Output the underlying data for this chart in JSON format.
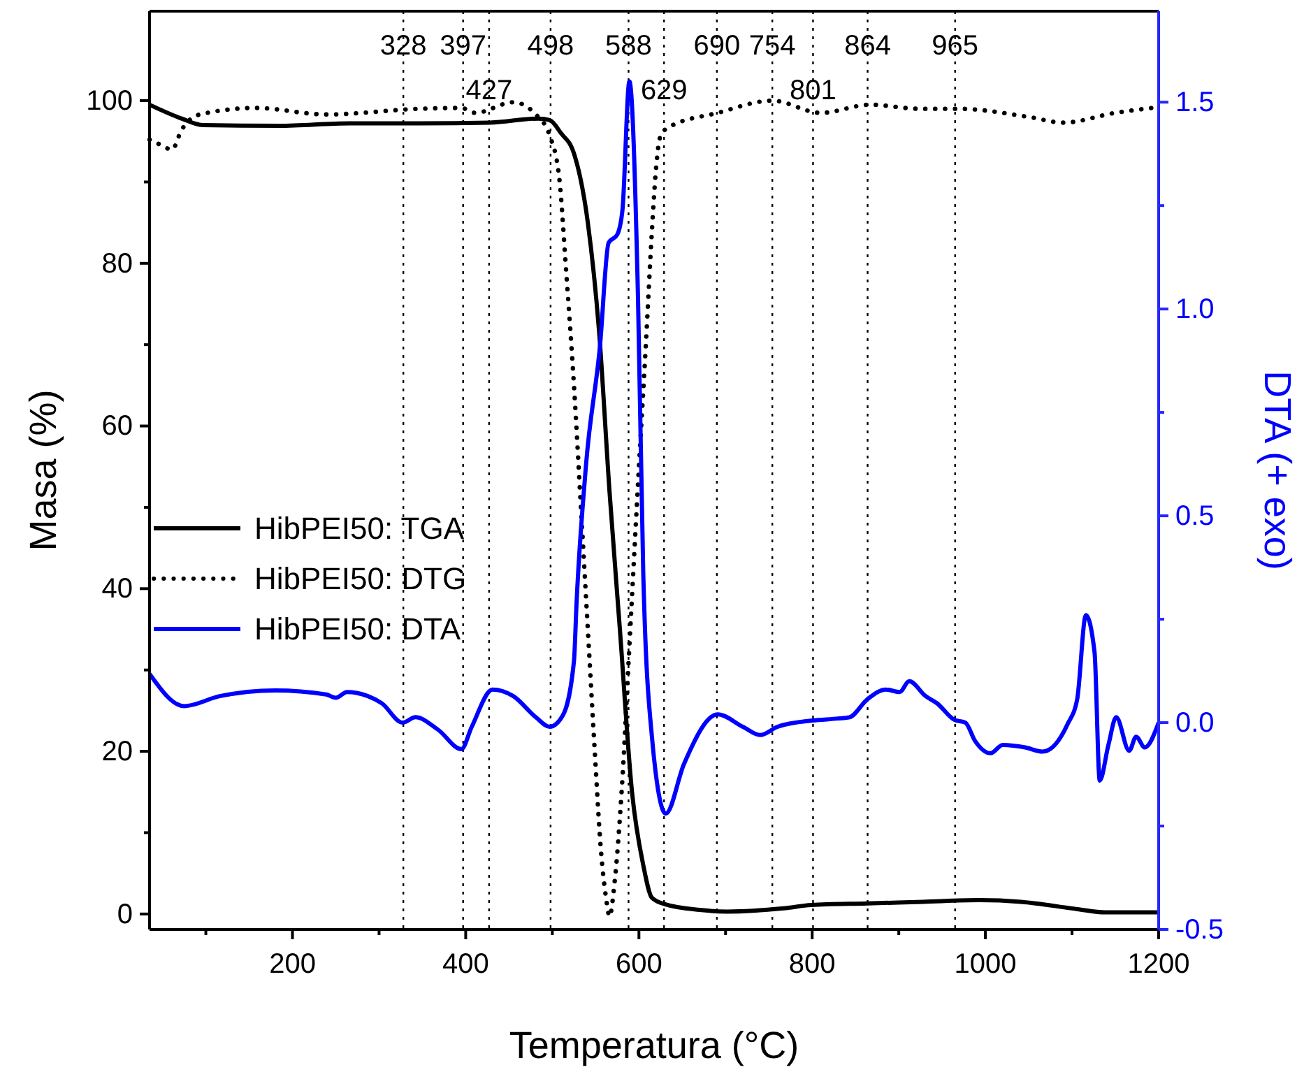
{
  "chart_data": {
    "type": "line",
    "xlabel": "Temperatura (°C)",
    "ylabel": "Masa (%)",
    "y2label": "DTA (+ exo)",
    "xlim": [
      35,
      1200
    ],
    "xticks": [
      {
        "value": 100,
        "label": null
      },
      200,
      {
        "value": 300,
        "label": null
      },
      400,
      {
        "value": 500,
        "label": null
      },
      600,
      {
        "value": 700,
        "label": null
      },
      800,
      {
        "value": 900,
        "label": null
      },
      1000,
      {
        "value": 1100,
        "label": null
      },
      1200
    ],
    "ylim": [
      -1.9,
      111
    ],
    "yticks": [
      0,
      {
        "value": 10,
        "label": null
      },
      20,
      {
        "value": 30,
        "label": null
      },
      40,
      {
        "value": 50,
        "label": null
      },
      60,
      {
        "value": 70,
        "label": null
      },
      80,
      {
        "value": 90,
        "label": null
      },
      100
    ],
    "y2lim": [
      -0.5,
      1.72
    ],
    "y2ticks": [
      {
        "value": -0.5,
        "label": "-0.5"
      },
      {
        "value": -0.25,
        "label": null
      },
      {
        "value": 0,
        "label": "0.0"
      },
      {
        "value": 0.25,
        "label": null
      },
      {
        "value": 0.5,
        "label": "0.5"
      },
      {
        "value": 0.75,
        "label": null
      },
      {
        "value": 1,
        "label": "1.0"
      },
      {
        "value": 1.25,
        "label": null
      },
      {
        "value": 1.5,
        "label": "1.5"
      }
    ],
    "legend": "left",
    "grid": false,
    "series": [
      {
        "name": "HibPEI50: TGA",
        "color": "#000000",
        "line_style": "solid",
        "x": [
          35,
          72,
          96,
          185,
          266,
          347,
          428,
          484,
          497,
          510,
          525,
          541,
          554,
          566,
          578,
          592,
          605,
          615,
          630,
          670,
          702,
          767,
          799,
          864,
          928,
          993,
          1041,
          1106,
          1138,
          1200
        ],
        "values": [
          99.5,
          97.8,
          97,
          96.9,
          97.2,
          97.2,
          97.3,
          97.8,
          97.6,
          96,
          93.5,
          85,
          71.6,
          52,
          35,
          15,
          6,
          2,
          1.2,
          0.5,
          0.3,
          0.7,
          1.1,
          1.3,
          1.5,
          1.7,
          1.5,
          0.6,
          0.2,
          0.2
        ]
      },
      {
        "name": "HibPEI50: DTG",
        "color": "#000000",
        "line_style": "dotted",
        "x": [
          35,
          45,
          61,
          72,
          93,
          158,
          239,
          347,
          395,
          411,
          455,
          481,
          497,
          508,
          516,
          525,
          533,
          541,
          549,
          556,
          562,
          566,
          572,
          580,
          590,
          600,
          608,
          615,
          620,
          625,
          634,
          691,
          754,
          810,
          867,
          924,
          969,
          1050,
          1090,
          1150,
          1200
        ],
        "values": [
          95.2,
          94.7,
          94,
          96.4,
          98.3,
          99.1,
          98.3,
          99,
          99.1,
          98.5,
          99.8,
          98.3,
          95.7,
          90.5,
          79,
          65,
          50,
          35,
          20,
          8,
          2,
          -0.3,
          4,
          15,
          35,
          55,
          70,
          84,
          92,
          95.7,
          96.7,
          98.5,
          100,
          98.5,
          99.5,
          99,
          99,
          98,
          97.3,
          98.5,
          99.2
        ]
      },
      {
        "name": "HibPEI50: DTA",
        "color": "#0000ff",
        "line_style": "solid",
        "axis": "y2",
        "x": [
          35,
          75,
          116,
          180,
          239,
          250,
          263,
          303,
          327,
          342,
          368,
          395,
          407,
          431,
          455,
          481,
          497,
          512,
          525,
          528,
          539,
          555,
          565,
          575,
          581,
          589,
          599,
          605,
          615,
          631,
          652,
          691,
          720,
          740,
          760,
          800,
          830,
          843,
          864,
          885,
          901,
          912,
          931,
          944,
          964,
          977,
          988,
          1006,
          1020,
          1046,
          1066,
          1095,
          1106,
          1116,
          1126,
          1132,
          1142,
          1151,
          1166,
          1174,
          1184,
          1200
        ],
        "values": [
          0.118,
          0.04,
          0.064,
          0.078,
          0.068,
          0.06,
          0.074,
          0.047,
          0,
          0.013,
          -0.017,
          -0.064,
          -0.01,
          0.08,
          0.064,
          0.013,
          -0.01,
          0.017,
          0.149,
          0.29,
          0.625,
          0.91,
          1.16,
          1.18,
          1.24,
          1.55,
          1.02,
          0.36,
          -0.034,
          -0.22,
          -0.1,
          0.02,
          -0.01,
          -0.03,
          -0.01,
          0.005,
          0.01,
          0.013,
          0.057,
          0.08,
          0.074,
          0.1,
          0.064,
          0.047,
          0.007,
          0,
          -0.044,
          -0.074,
          -0.054,
          -0.06,
          -0.07,
          -0.003,
          0.057,
          0.26,
          0.17,
          -0.14,
          -0.054,
          0.013,
          -0.068,
          -0.034,
          -0.06,
          0
        ]
      }
    ],
    "ref_lines": [
      {
        "axis": "x",
        "value": 328,
        "label": "328",
        "color": "#000000",
        "line_style": "dotted"
      },
      {
        "axis": "x",
        "value": 397,
        "label": "397",
        "color": "#000000",
        "line_style": "dotted"
      },
      {
        "axis": "x",
        "value": 427,
        "label": "427",
        "color": "#000000",
        "line_style": "dotted"
      },
      {
        "axis": "x",
        "value": 498,
        "label": "498",
        "color": "#000000",
        "line_style": "dotted"
      },
      {
        "axis": "x",
        "value": 588,
        "label": "588",
        "color": "#000000",
        "line_style": "dotted"
      },
      {
        "axis": "x",
        "value": 629,
        "label": "629",
        "color": "#000000",
        "line_style": "dotted"
      },
      {
        "axis": "x",
        "value": 690,
        "label": "690",
        "color": "#000000",
        "line_style": "dotted"
      },
      {
        "axis": "x",
        "value": 754,
        "label": "754",
        "color": "#000000",
        "line_style": "dotted"
      },
      {
        "axis": "x",
        "value": 801,
        "label": "801",
        "color": "#000000",
        "line_style": "dotted"
      },
      {
        "axis": "x",
        "value": 864,
        "label": "864",
        "color": "#000000",
        "line_style": "dotted"
      },
      {
        "axis": "x",
        "value": 965,
        "label": "965",
        "color": "#000000",
        "line_style": "dotted"
      }
    ]
  }
}
